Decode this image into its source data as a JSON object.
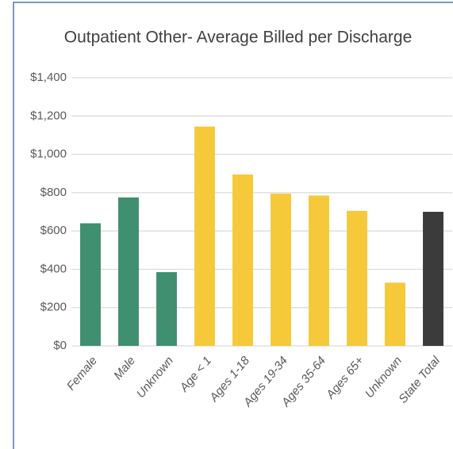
{
  "chart_data": {
    "type": "bar",
    "title": "Outpatient Other- Average Billed per Discharge",
    "categories": [
      "Female",
      "Male",
      "Unknown",
      "Age < 1",
      "Ages 1-18",
      "Ages 19-34",
      "Ages 35-64",
      "Ages 65+",
      "Unknown",
      "State Total"
    ],
    "values": [
      640,
      775,
      385,
      1145,
      895,
      795,
      785,
      705,
      330,
      700
    ],
    "colors": [
      "#3f8f70",
      "#3f8f70",
      "#3f8f70",
      "#f5c93a",
      "#f5c93a",
      "#f5c93a",
      "#f5c93a",
      "#f5c93a",
      "#f5c93a",
      "#3b3b3b"
    ],
    "ylim": [
      0,
      1400
    ],
    "yticks": [
      {
        "value": 0,
        "label": "$0"
      },
      {
        "value": 200,
        "label": "$200"
      },
      {
        "value": 400,
        "label": "$400"
      },
      {
        "value": 600,
        "label": "$600"
      },
      {
        "value": 800,
        "label": "$800"
      },
      {
        "value": 1000,
        "label": "$1,000"
      },
      {
        "value": 1200,
        "label": "$1,200"
      },
      {
        "value": 1400,
        "label": "$1,400"
      }
    ],
    "grid": true
  }
}
